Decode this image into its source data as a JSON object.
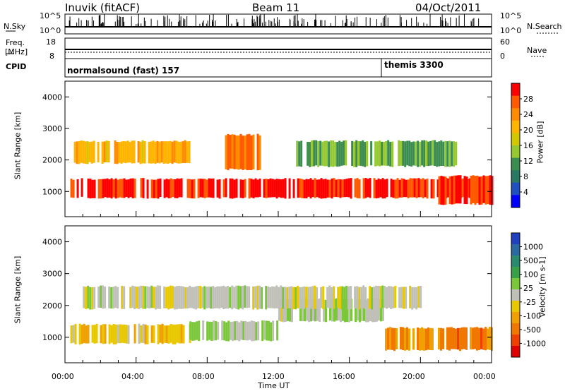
{
  "header": {
    "station": "Inuvik (fitACF)",
    "beam": "Beam 11",
    "date": "04/Oct/2011"
  },
  "noise_panel": {
    "left_label": "N.Sky",
    "right_label": "N.Search",
    "left_ticks": [
      "10^5",
      "10^0"
    ],
    "right_ticks": [
      "10^5",
      "10^0"
    ]
  },
  "freq_panel": {
    "left_label_line1": "Freq.",
    "left_label_line2": "[MHz]",
    "left_ticks": [
      "18",
      "8"
    ],
    "right_label": "Nave",
    "right_ticks": [
      "60",
      "0"
    ]
  },
  "cpid_panel": {
    "label": "CPID",
    "segments": [
      {
        "name": "normalsound (fast) 157",
        "start_hour": 0
      },
      {
        "name": "themis 3300",
        "start_hour": 18
      }
    ]
  },
  "x_axis": {
    "ticks": [
      "00:00",
      "04:00",
      "08:00",
      "12:00",
      "16:00",
      "20:00",
      "00:00"
    ],
    "title": "Time UT"
  },
  "power_colorbar": {
    "title": "Power [dB]",
    "ticks": [
      "28",
      "24",
      "20",
      "16",
      "12",
      "8",
      "4"
    ],
    "colors": [
      "#ff0000",
      "#ff5a00",
      "#ff8c00",
      "#ffb400",
      "#d2c800",
      "#96c832",
      "#3c8c50",
      "#287864",
      "#2050c0",
      "#0000ff"
    ]
  },
  "velocity_colorbar": {
    "title": "Velocity [m s-1]",
    "ticks": [
      "1000",
      "500",
      "100",
      "25",
      "-25",
      "-100",
      "-500",
      "-1000"
    ],
    "colors": [
      "#2040c0",
      "#2a6aa0",
      "#2a8a70",
      "#3aa048",
      "#7ac83a",
      "#c0c0b8",
      "#e8c800",
      "#f0a000",
      "#f07800",
      "#f04000",
      "#e00000"
    ]
  },
  "chart_data": [
    {
      "type": "heatmap",
      "title": "Power",
      "ylabel": "Slant Range [km]",
      "xlabel": "Time UT",
      "ylim": [
        200,
        4500
      ],
      "yticks": [
        1000,
        2000,
        3000,
        4000
      ],
      "xlim": [
        0,
        24
      ],
      "colorbar_label": "Power [dB]",
      "colorbar_range": [
        0,
        30
      ],
      "bands": [
        {
          "t_start": 0.3,
          "t_end": 24,
          "range_start": 800,
          "range_end": 1400,
          "value": 28
        },
        {
          "t_start": 0.5,
          "t_end": 7,
          "range_start": 1900,
          "range_end": 2600,
          "value": 20
        },
        {
          "t_start": 9,
          "t_end": 11,
          "range_start": 1700,
          "range_end": 2800,
          "value": 24
        },
        {
          "t_start": 13,
          "t_end": 22,
          "range_start": 1800,
          "range_end": 2600,
          "value": 12
        },
        {
          "t_start": 21,
          "t_end": 24,
          "range_start": 600,
          "range_end": 1500,
          "value": 28
        }
      ]
    },
    {
      "type": "heatmap",
      "title": "Velocity",
      "ylabel": "Slant Range [km]",
      "xlabel": "Time UT",
      "ylim": [
        200,
        4500
      ],
      "yticks": [
        1000,
        2000,
        3000,
        4000
      ],
      "xlim": [
        0,
        24
      ],
      "colorbar_label": "Velocity [m s-1]",
      "colorbar_range": [
        -1000,
        1000
      ],
      "bands": [
        {
          "t_start": 0.3,
          "t_end": 7,
          "range_start": 800,
          "range_end": 1400,
          "value": -200
        },
        {
          "t_start": 7,
          "t_end": 12,
          "range_start": 900,
          "range_end": 1500,
          "value": 120
        },
        {
          "t_start": 12,
          "t_end": 18,
          "range_start": 1500,
          "range_end": 2200,
          "value": 50
        },
        {
          "t_start": 1,
          "t_end": 20,
          "range_start": 1900,
          "range_end": 2600,
          "value": 0
        },
        {
          "t_start": 18,
          "t_end": 24,
          "range_start": 600,
          "range_end": 1300,
          "value": -500
        }
      ]
    }
  ]
}
